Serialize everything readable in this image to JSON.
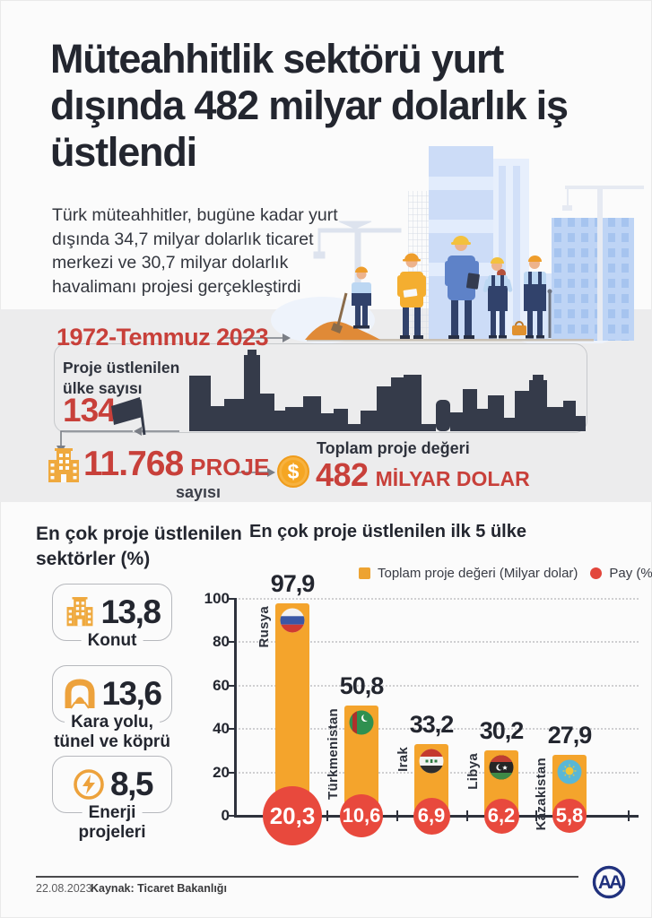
{
  "header": {
    "title": "Müteahhitlik sektörü yurt dışında 482 milyar dolarlık iş üstlendi",
    "subtitle": "Türk müteahhitler, bugüne kadar yurt dışında 34,7 milyar dolarlık ticaret merkezi ve 30,7 milyar dolarlık havalimanı projesi gerçekleştirdi"
  },
  "band": {
    "period": "1972-Temmuz 2023",
    "countries_label": "Proje üstlenilen ülke sayısı",
    "countries_value": "134",
    "projects_value": "11.768",
    "projects_unit": "PROJE",
    "projects_sub": "sayısı",
    "total_label": "Toplam proje değeri",
    "total_value": "482",
    "total_unit": "MİLYAR DOLAR",
    "dollar_sign": "$"
  },
  "sectors": {
    "heading": "En çok proje üstlenilen sektörler (%)",
    "items": [
      {
        "icon": "building-icon",
        "value": "13,8",
        "label": "Konut",
        "label2": ""
      },
      {
        "icon": "tunnel-icon",
        "value": "13,6",
        "label": "Kara yolu,",
        "label2": "tünel ve köprü"
      },
      {
        "icon": "energy-icon",
        "value": "8,5",
        "label": "Enerji",
        "label2": "projeleri"
      }
    ]
  },
  "chart": {
    "heading": "En çok proje üstlenilen ilk 5 ülke",
    "legend": [
      {
        "label": "Toplam proje değeri (Milyar dolar)",
        "color": "#eda332"
      },
      {
        "label": "Pay (%)",
        "color": "#e2463b"
      }
    ]
  },
  "chart_data": {
    "type": "bar",
    "title": "En çok proje üstlenilen ilk 5 ülke",
    "categories": [
      "Rusya",
      "Türkmenistan",
      "Irak",
      "Libya",
      "Kazakistan"
    ],
    "series": [
      {
        "name": "Toplam proje değeri (Milyar dolar)",
        "values": [
          97.9,
          50.8,
          33.2,
          30.2,
          27.9
        ]
      },
      {
        "name": "Pay (%)",
        "values": [
          20.3,
          10.6,
          6.9,
          6.2,
          5.8
        ]
      }
    ],
    "value_labels": [
      "97,9",
      "50,8",
      "33,2",
      "30,2",
      "27,9"
    ],
    "share_labels": [
      "20,3",
      "10,6",
      "6,9",
      "6,2",
      "5,8"
    ],
    "y_ticks": [
      0,
      20,
      40,
      60,
      80,
      100
    ],
    "ylim": [
      0,
      100
    ],
    "grid": "dotted-horizontal",
    "legend_position": "top-right",
    "bar_color": "#f4a42c",
    "share_color": "#e8493d"
  },
  "footer": {
    "date": "22.08.2023",
    "source": "Kaynak: Ticaret Bakanlığı",
    "logo": "AA"
  }
}
